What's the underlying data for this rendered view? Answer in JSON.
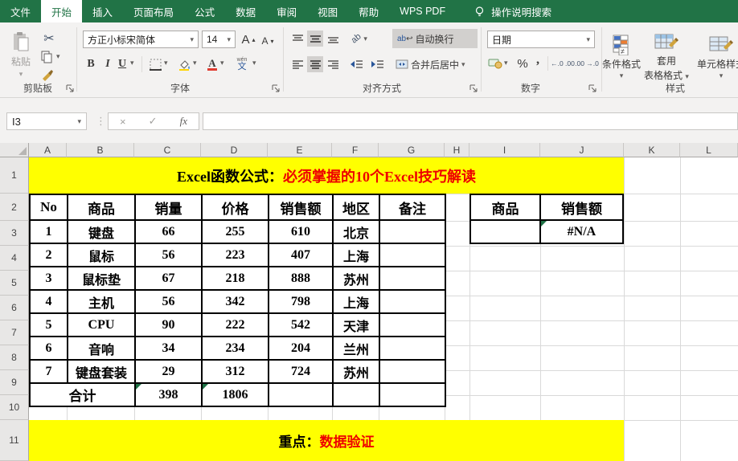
{
  "menu": {
    "tabs": [
      {
        "label": "文件",
        "active": false
      },
      {
        "label": "开始",
        "active": true
      },
      {
        "label": "插入",
        "active": false
      },
      {
        "label": "页面布局",
        "active": false
      },
      {
        "label": "公式",
        "active": false
      },
      {
        "label": "数据",
        "active": false
      },
      {
        "label": "审阅",
        "active": false
      },
      {
        "label": "视图",
        "active": false
      },
      {
        "label": "帮助",
        "active": false
      },
      {
        "label": "WPS PDF",
        "active": false
      }
    ],
    "search_label": "操作说明搜索"
  },
  "ribbon": {
    "clipboard": {
      "paste": "粘贴",
      "group": "剪贴板"
    },
    "font": {
      "family": "方正小标宋简体",
      "size": "14",
      "bold": "B",
      "italic": "I",
      "underline": "U",
      "color_letter": "A",
      "phonetic_top": "wén",
      "phonetic": "文",
      "group": "字体"
    },
    "alignment": {
      "orientation": "ab",
      "wrap": "自动换行",
      "merge": "合并后居中",
      "group": "对齐方式"
    },
    "number": {
      "format": "日期",
      "percent": "%",
      "comma": ",",
      "inc_decimal": "←.0 .00",
      "dec_decimal": ".00 →.0",
      "group": "数字"
    },
    "styles": {
      "conditional": "条件格式",
      "ne_badge": "≠",
      "table_line1": "套用",
      "table_line2": "表格格式",
      "cells": "单元格样式",
      "group": "样式"
    }
  },
  "formula_bar": {
    "name_box": "I3",
    "cancel": "×",
    "confirm": "✓",
    "fx": "fx",
    "value": ""
  },
  "sheet": {
    "columns": [
      "A",
      "B",
      "C",
      "D",
      "E",
      "F",
      "G",
      "H",
      "I",
      "J",
      "K",
      "L"
    ],
    "row_numbers": [
      "1",
      "2",
      "3",
      "4",
      "5",
      "6",
      "7",
      "8",
      "9",
      "10",
      "11"
    ],
    "title": {
      "prefix": "Excel函数公式：",
      "highlight": "必须掌握的10个Excel技巧解读"
    },
    "table": {
      "headers": [
        "No",
        "商品",
        "销量",
        "价格",
        "销售额",
        "地区",
        "备注"
      ],
      "rows": [
        [
          "1",
          "键盘",
          "66",
          "255",
          "610",
          "北京",
          ""
        ],
        [
          "2",
          "鼠标",
          "56",
          "223",
          "407",
          "上海",
          ""
        ],
        [
          "3",
          "鼠标垫",
          "67",
          "218",
          "888",
          "苏州",
          ""
        ],
        [
          "4",
          "主机",
          "56",
          "342",
          "798",
          "上海",
          ""
        ],
        [
          "5",
          "CPU",
          "90",
          "222",
          "542",
          "天津",
          ""
        ],
        [
          "6",
          "音响",
          "34",
          "234",
          "204",
          "兰州",
          ""
        ],
        [
          "7",
          "键盘套装",
          "29",
          "312",
          "724",
          "苏州",
          ""
        ]
      ],
      "total": {
        "label": "合计",
        "qty": "398",
        "amount": "1806"
      }
    },
    "lookup": {
      "headers": [
        "商品",
        "销售额"
      ],
      "product": "",
      "amount": "#N/A"
    },
    "footer": {
      "prefix": "重点：",
      "highlight": "数据验证"
    }
  },
  "colors": {
    "brand_green": "#217346",
    "highlight_yellow": "#ffff00",
    "alert_red": "#ee0000",
    "error_indicator_green": "#1e7145"
  }
}
